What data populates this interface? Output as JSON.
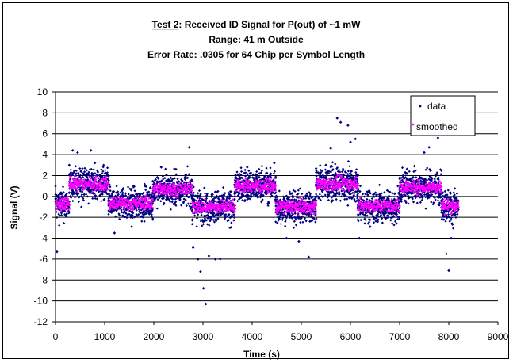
{
  "chart_data": {
    "type": "scatter",
    "title_prefix": "Test 2",
    "title_line1_rest": ": Received ID Signal for P(out) of ~1 mW",
    "title_line2": "Range: 41 m Outside",
    "title_line3": "Error Rate: .0305 for 64 Chip per Symbol Length",
    "xlabel": "Time (s)",
    "ylabel": "Signal (V)",
    "xlim": [
      0,
      9000
    ],
    "ylim": [
      -12,
      10
    ],
    "xticks": [
      0,
      1000,
      2000,
      3000,
      4000,
      5000,
      6000,
      7000,
      8000,
      9000
    ],
    "yticks": [
      10,
      8,
      6,
      4,
      2,
      0,
      -2,
      -4,
      -6,
      -8,
      -10,
      -12
    ],
    "grid": "horizontal",
    "legend_position": "top-right",
    "series": [
      {
        "name": "data",
        "color": "#000080",
        "marker": "diamond",
        "segments": [
          {
            "x_start": 0,
            "x_end": 280,
            "level": -0.8
          },
          {
            "x_start": 280,
            "x_end": 1080,
            "level": 1.2
          },
          {
            "x_start": 1080,
            "x_end": 1980,
            "level": -0.7
          },
          {
            "x_start": 1980,
            "x_end": 2780,
            "level": 0.7
          },
          {
            "x_start": 2780,
            "x_end": 3650,
            "level": -1.0
          },
          {
            "x_start": 3650,
            "x_end": 4480,
            "level": 1.0
          },
          {
            "x_start": 4480,
            "x_end": 5300,
            "level": -1.0
          },
          {
            "x_start": 5300,
            "x_end": 6150,
            "level": 1.2
          },
          {
            "x_start": 6150,
            "x_end": 7000,
            "level": -0.9
          },
          {
            "x_start": 7000,
            "x_end": 7850,
            "level": 0.9
          },
          {
            "x_start": 7850,
            "x_end": 8200,
            "level": -0.9
          }
        ],
        "outliers": [
          {
            "x": 30,
            "y": -5.3
          },
          {
            "x": 350,
            "y": 4.4
          },
          {
            "x": 450,
            "y": 4.2
          },
          {
            "x": 720,
            "y": 4.4
          },
          {
            "x": 800,
            "y": 3.2
          },
          {
            "x": 1200,
            "y": -3.5
          },
          {
            "x": 1550,
            "y": -2.9
          },
          {
            "x": 2150,
            "y": 2.8
          },
          {
            "x": 2450,
            "y": 2.6
          },
          {
            "x": 2720,
            "y": 4.7
          },
          {
            "x": 2800,
            "y": -4.9
          },
          {
            "x": 2900,
            "y": -6.0
          },
          {
            "x": 2950,
            "y": -7.2
          },
          {
            "x": 3010,
            "y": -8.8
          },
          {
            "x": 3060,
            "y": -10.3
          },
          {
            "x": 3120,
            "y": -5.7
          },
          {
            "x": 3250,
            "y": -6.0
          },
          {
            "x": 3350,
            "y": -6.0
          },
          {
            "x": 3550,
            "y": -3.0
          },
          {
            "x": 3900,
            "y": 2.8
          },
          {
            "x": 4200,
            "y": 2.9
          },
          {
            "x": 4450,
            "y": 3.2
          },
          {
            "x": 4700,
            "y": -4.0
          },
          {
            "x": 4950,
            "y": -4.3
          },
          {
            "x": 5150,
            "y": -5.8
          },
          {
            "x": 5500,
            "y": 3.0
          },
          {
            "x": 5600,
            "y": 4.6
          },
          {
            "x": 5730,
            "y": 7.5
          },
          {
            "x": 5800,
            "y": 7.1
          },
          {
            "x": 5950,
            "y": 6.8
          },
          {
            "x": 6000,
            "y": 5.2
          },
          {
            "x": 6100,
            "y": 5.5
          },
          {
            "x": 6180,
            "y": -4.0
          },
          {
            "x": 6400,
            "y": -2.9
          },
          {
            "x": 6850,
            "y": -2.6
          },
          {
            "x": 7300,
            "y": 2.9
          },
          {
            "x": 7500,
            "y": 4.2
          },
          {
            "x": 7600,
            "y": 4.7
          },
          {
            "x": 7780,
            "y": 5.6
          },
          {
            "x": 7950,
            "y": -5.5
          },
          {
            "x": 8000,
            "y": -7.1
          },
          {
            "x": 8050,
            "y": -4.0
          }
        ]
      },
      {
        "name": "smoothed",
        "color": "#ff00ff",
        "marker": "square",
        "segments": [
          {
            "x_start": 0,
            "x_end": 280,
            "level": -0.8
          },
          {
            "x_start": 280,
            "x_end": 1080,
            "level": 1.2
          },
          {
            "x_start": 1080,
            "x_end": 1980,
            "level": -0.7
          },
          {
            "x_start": 1980,
            "x_end": 2780,
            "level": 0.7
          },
          {
            "x_start": 2780,
            "x_end": 3650,
            "level": -1.0
          },
          {
            "x_start": 3650,
            "x_end": 4480,
            "level": 1.0
          },
          {
            "x_start": 4480,
            "x_end": 5300,
            "level": -1.0
          },
          {
            "x_start": 5300,
            "x_end": 6150,
            "level": 1.2
          },
          {
            "x_start": 6150,
            "x_end": 7000,
            "level": -0.9
          },
          {
            "x_start": 7000,
            "x_end": 7850,
            "level": 0.9
          },
          {
            "x_start": 7850,
            "x_end": 8200,
            "level": -0.9
          }
        ]
      }
    ]
  }
}
